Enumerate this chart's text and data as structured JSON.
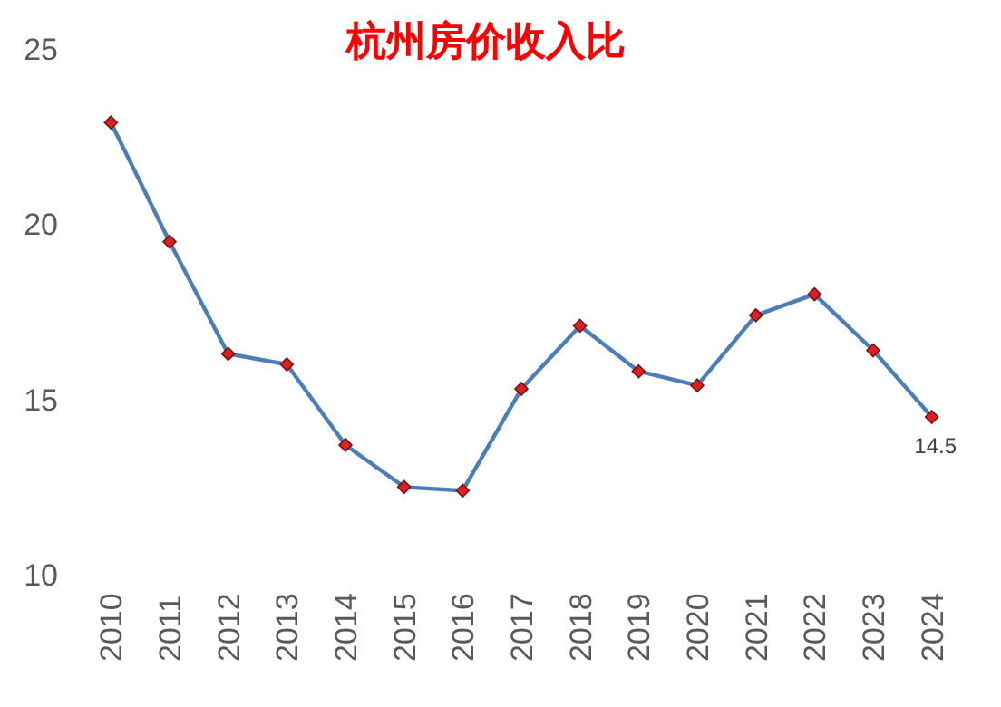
{
  "chart_data": {
    "type": "line",
    "title": "杭州房价收入比",
    "categories": [
      "2010",
      "2011",
      "2012",
      "2013",
      "2014",
      "2015",
      "2016",
      "2017",
      "2018",
      "2019",
      "2020",
      "2021",
      "2022",
      "2023",
      "2024"
    ],
    "series": [
      {
        "color": "#4a7ebb",
        "values": [
          22.9,
          19.5,
          16.3,
          16.0,
          13.7,
          12.5,
          12.4,
          15.3,
          17.1,
          15.8,
          15.4,
          17.4,
          18.0,
          16.4,
          14.5
        ],
        "value_labels": [
          null,
          null,
          null,
          null,
          null,
          null,
          null,
          null,
          null,
          null,
          null,
          null,
          null,
          null,
          "14.5"
        ]
      }
    ],
    "ylim": [
      10,
      25
    ],
    "yticks": [
      10,
      15,
      20,
      25
    ],
    "grid": false,
    "marker": "diamond",
    "line_style": "solid"
  }
}
